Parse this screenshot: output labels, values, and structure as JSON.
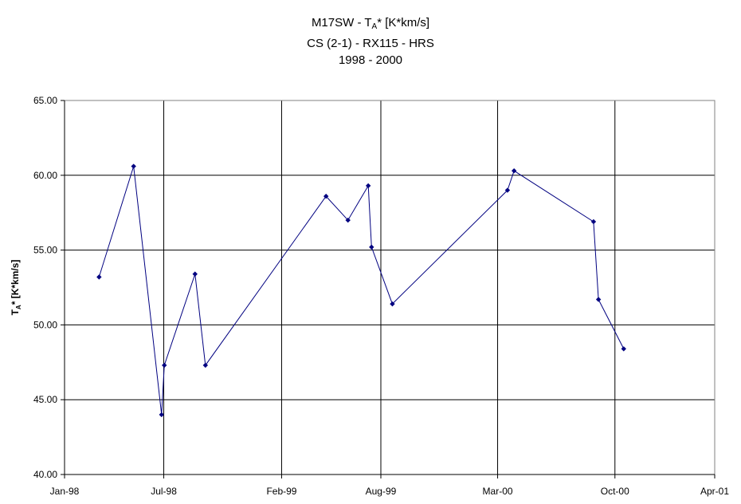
{
  "chart_data": {
    "type": "line",
    "title_line1_prefix": "M17SW - T",
    "title_line1_sub": "A",
    "title_line1_suffix": "* [K*km/s]",
    "subtitle_line2": "CS (2-1) - RX115 - HRS",
    "subtitle_line3": "1998 - 2000",
    "ylabel_prefix": "T",
    "ylabel_sub": "A",
    "ylabel_suffix": "* [K*km/s]",
    "xlabel": "",
    "ylim": [
      40,
      65
    ],
    "yticks": [
      "40.00",
      "45.00",
      "50.00",
      "55.00",
      "60.00",
      "65.00"
    ],
    "xlim": [
      "1998-01-01",
      "2001-04-01"
    ],
    "xticks": [
      {
        "date": "1998-01-01",
        "label": "Jan-98"
      },
      {
        "date": "1998-07-01",
        "label": "Jul-98"
      },
      {
        "date": "1999-02-01",
        "label": "Feb-99"
      },
      {
        "date": "1999-08-01",
        "label": "Aug-99"
      },
      {
        "date": "2000-03-01",
        "label": "Mar-00"
      },
      {
        "date": "2000-10-01",
        "label": "Oct-00"
      },
      {
        "date": "2001-04-01",
        "label": "Apr-01"
      }
    ],
    "grid": true,
    "color": "#000080",
    "series": [
      {
        "x": [
          "1998-03-05",
          "1998-05-07",
          "1998-06-27",
          "1998-07-02",
          "1998-08-27",
          "1998-09-15",
          "1999-04-23",
          "1999-06-02",
          "1999-07-09",
          "1999-07-15",
          "1999-08-22",
          "2000-03-19",
          "2000-03-31",
          "2000-08-23",
          "2000-09-01",
          "2000-10-17"
        ],
        "y": [
          53.2,
          60.6,
          44.0,
          47.3,
          53.4,
          47.3,
          58.6,
          57.0,
          59.3,
          55.2,
          51.4,
          59.0,
          60.3,
          56.9,
          51.7,
          48.4
        ]
      }
    ]
  }
}
